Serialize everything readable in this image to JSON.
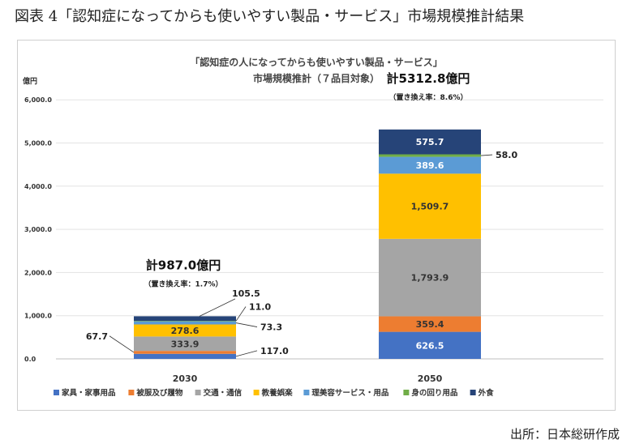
{
  "figure_title": "図表 4「認知症になってからも使いやすい製品・サービス」市場規模推計結果",
  "source": "出所：日本総研作成",
  "chart_data": {
    "type": "bar",
    "stacked": true,
    "title_line1": "「認知症の人になってからも使いやすい製品・サービス」",
    "title_line2": "市場規模推計（７品目対象）",
    "ylabel": "億円",
    "ylim": [
      0,
      6000
    ],
    "yticks": [
      0,
      1000,
      2000,
      3000,
      4000,
      5000,
      6000
    ],
    "ytick_labels": [
      "0.0",
      "1,000.0",
      "2,000.0",
      "3,000.0",
      "4,000.0",
      "5,000.0",
      "6,000.0"
    ],
    "categories": [
      "2030",
      "2050"
    ],
    "totals": [
      {
        "label": "計987.0億円",
        "sub": "（置き換え率：1.7%）"
      },
      {
        "label": "計5312.8億円",
        "sub": "（置き換え率：8.6%）"
      }
    ],
    "series": [
      {
        "name": "家具・家事用品",
        "color": "#4472c4",
        "values": [
          117.0,
          626.5
        ],
        "labels": [
          "117.0",
          "626.5"
        ]
      },
      {
        "name": "被服及び履物",
        "color": "#ed7d31",
        "values": [
          67.7,
          359.4
        ],
        "labels": [
          "67.7",
          "359.4"
        ]
      },
      {
        "name": "交通・通信",
        "color": "#a5a5a5",
        "values": [
          333.9,
          1793.9
        ],
        "labels": [
          "333.9",
          "1,793.9"
        ]
      },
      {
        "name": "教養娯楽",
        "color": "#ffc000",
        "values": [
          278.6,
          1509.7
        ],
        "labels": [
          "278.6",
          "1,509.7"
        ]
      },
      {
        "name": "理美容サービス・用品",
        "color": "#5b9bd5",
        "values": [
          73.3,
          389.6
        ],
        "labels": [
          "73.3",
          "389.6"
        ]
      },
      {
        "name": "身の回り用品",
        "color": "#70ad47",
        "values": [
          11.0,
          58.0
        ],
        "labels": [
          "11.0",
          "58.0"
        ]
      },
      {
        "name": "外食",
        "color": "#264478",
        "values": [
          105.5,
          575.7
        ],
        "labels": [
          "105.5",
          "575.7"
        ]
      }
    ]
  }
}
